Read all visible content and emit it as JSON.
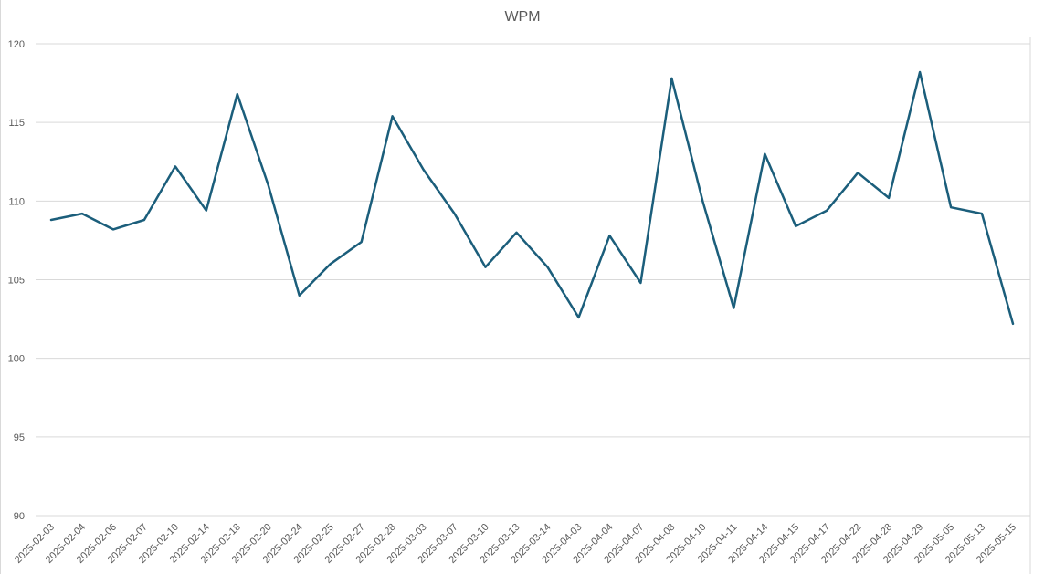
{
  "chart_data": {
    "type": "line",
    "title": "WPM",
    "xlabel": "",
    "ylabel": "",
    "ylim": [
      90,
      120
    ],
    "ytick_step": 5,
    "grid": true,
    "legend": "none",
    "categories": [
      "2025-02-03",
      "2025-02-04",
      "2025-02-06",
      "2025-02-07",
      "2025-02-10",
      "2025-02-14",
      "2025-02-18",
      "2025-02-20",
      "2025-02-24",
      "2025-02-25",
      "2025-02-27",
      "2025-02-28",
      "2025-03-03",
      "2025-03-07",
      "2025-03-10",
      "2025-03-13",
      "2025-03-14",
      "2025-04-03",
      "2025-04-04",
      "2025-04-07",
      "2025-04-08",
      "2025-04-10",
      "2025-04-11",
      "2025-04-14",
      "2025-04-15",
      "2025-04-17",
      "2025-04-22",
      "2025-04-28",
      "2025-04-29",
      "2025-05-05",
      "2025-05-13",
      "2025-05-15"
    ],
    "series": [
      {
        "color": "#1b5e7b",
        "values": [
          108.8,
          109.2,
          108.2,
          108.8,
          112.2,
          109.4,
          116.8,
          111.0,
          104.0,
          106.0,
          107.4,
          115.4,
          112.0,
          109.2,
          105.8,
          108.0,
          105.8,
          102.6,
          107.8,
          104.8,
          117.8,
          110.0,
          103.2,
          113.0,
          108.4,
          109.4,
          111.8,
          110.2,
          118.2,
          109.6,
          109.2,
          102.2
        ]
      }
    ]
  }
}
